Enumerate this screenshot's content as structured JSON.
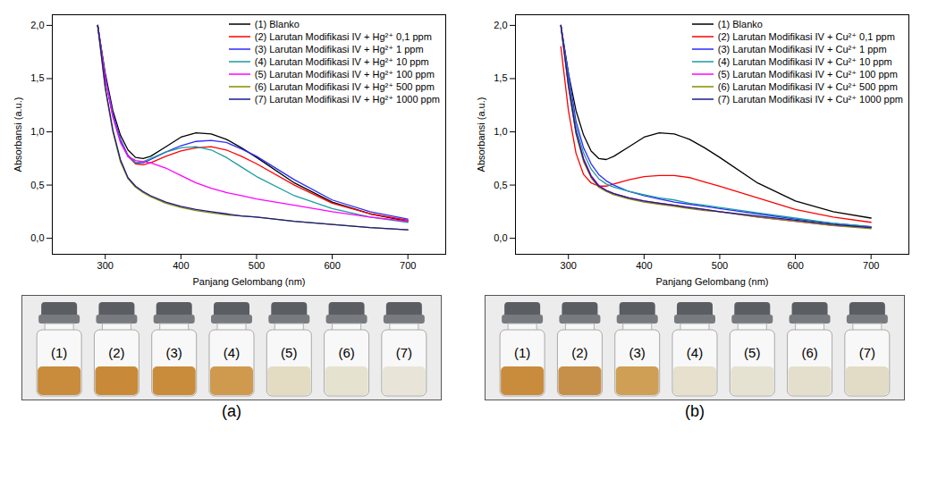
{
  "chart_data": [
    {
      "type": "line",
      "panel_label": "(a)",
      "xlabel": "Panjang Gelombang (nm)",
      "ylabel": "Absorbansi (a.u.)",
      "xlim": [
        230,
        750
      ],
      "ylim": [
        -0.15,
        2.1
      ],
      "xticks": [
        300,
        400,
        500,
        600,
        700
      ],
      "yticks": [
        {
          "value": 0,
          "label": "0,0"
        },
        {
          "value": 0.5,
          "label": "0,5"
        },
        {
          "value": 1,
          "label": "1,0"
        },
        {
          "value": 1.5,
          "label": "1,5"
        },
        {
          "value": 2,
          "label": "2,0"
        }
      ],
      "grid": false,
      "legend": "top-right",
      "x": [
        290,
        300,
        310,
        320,
        330,
        340,
        350,
        360,
        380,
        400,
        420,
        440,
        460,
        480,
        500,
        550,
        600,
        650,
        700
      ],
      "series": [
        {
          "name": "(1) Blanko",
          "color": "#000000",
          "values": [
            2.0,
            1.55,
            1.2,
            0.97,
            0.83,
            0.76,
            0.75,
            0.77,
            0.86,
            0.95,
            0.99,
            0.98,
            0.93,
            0.85,
            0.76,
            0.52,
            0.34,
            0.23,
            0.16
          ]
        },
        {
          "name": "(2) Larutan Modifikasi IV + Hg²⁺ 0,1 ppm",
          "color": "#ff0000",
          "values": [
            2.0,
            1.5,
            1.15,
            0.92,
            0.77,
            0.7,
            0.69,
            0.71,
            0.77,
            0.82,
            0.85,
            0.86,
            0.83,
            0.77,
            0.7,
            0.5,
            0.33,
            0.23,
            0.17
          ]
        },
        {
          "name": "(3) Larutan Modifikasi IV + Hg²⁺ 1 ppm",
          "color": "#2a2aff",
          "values": [
            2.0,
            1.52,
            1.17,
            0.93,
            0.78,
            0.71,
            0.71,
            0.74,
            0.81,
            0.87,
            0.91,
            0.92,
            0.9,
            0.84,
            0.77,
            0.55,
            0.36,
            0.25,
            0.18
          ]
        },
        {
          "name": "(4) Larutan Modifikasi IV + Hg²⁺ 10 ppm",
          "color": "#1a9c9c",
          "values": [
            2.0,
            1.5,
            1.15,
            0.91,
            0.77,
            0.71,
            0.72,
            0.75,
            0.81,
            0.85,
            0.86,
            0.83,
            0.76,
            0.67,
            0.58,
            0.4,
            0.28,
            0.2,
            0.15
          ]
        },
        {
          "name": "(5) Larutan Modifikasi IV + Hg²⁺ 100 ppm",
          "color": "#ff00ff",
          "values": [
            2.0,
            1.5,
            1.14,
            0.9,
            0.77,
            0.73,
            0.72,
            0.71,
            0.66,
            0.59,
            0.52,
            0.47,
            0.43,
            0.4,
            0.37,
            0.31,
            0.25,
            0.2,
            0.16
          ]
        },
        {
          "name": "(6) Larutan Modifikasi IV + Hg²⁺ 500 ppm",
          "color": "#8a8a00",
          "values": [
            2.0,
            1.4,
            1.0,
            0.72,
            0.56,
            0.48,
            0.43,
            0.39,
            0.33,
            0.29,
            0.26,
            0.24,
            0.22,
            0.21,
            0.2,
            0.16,
            0.13,
            0.1,
            0.08
          ]
        },
        {
          "name": "(7) Larutan Modifikasi IV + Hg²⁺ 1000 ppm",
          "color": "#1a1a8c",
          "values": [
            2.0,
            1.42,
            1.02,
            0.74,
            0.57,
            0.49,
            0.44,
            0.4,
            0.34,
            0.3,
            0.27,
            0.25,
            0.23,
            0.21,
            0.2,
            0.16,
            0.13,
            0.1,
            0.08
          ]
        }
      ],
      "vials": [
        {
          "label": "(1)",
          "color": "#c98b3c"
        },
        {
          "label": "(2)",
          "color": "#c88a38"
        },
        {
          "label": "(3)",
          "color": "#c98c3a"
        },
        {
          "label": "(4)",
          "color": "#cf9a4e"
        },
        {
          "label": "(5)",
          "color": "#e3dcc2"
        },
        {
          "label": "(6)",
          "color": "#e6e2d0"
        },
        {
          "label": "(7)",
          "color": "#e8e5d8"
        }
      ]
    },
    {
      "type": "line",
      "panel_label": "(b)",
      "xlabel": "Panjang Gelombang (nm)",
      "ylabel": "Absorbansi (a.u.)",
      "xlim": [
        230,
        750
      ],
      "ylim": [
        -0.15,
        2.1
      ],
      "xticks": [
        300,
        400,
        500,
        600,
        700
      ],
      "yticks": [
        {
          "value": 0,
          "label": "0,0"
        },
        {
          "value": 0.5,
          "label": "0,5"
        },
        {
          "value": 1,
          "label": "1,0"
        },
        {
          "value": 1.5,
          "label": "1,5"
        },
        {
          "value": 2,
          "label": "2,0"
        }
      ],
      "grid": false,
      "legend": "top-right",
      "x": [
        290,
        300,
        310,
        320,
        330,
        340,
        350,
        360,
        380,
        400,
        420,
        440,
        460,
        480,
        500,
        550,
        600,
        650,
        700
      ],
      "series": [
        {
          "name": "(1) Blanko",
          "color": "#000000",
          "values": [
            2.0,
            1.55,
            1.2,
            0.97,
            0.82,
            0.75,
            0.74,
            0.77,
            0.86,
            0.95,
            0.99,
            0.98,
            0.93,
            0.85,
            0.76,
            0.52,
            0.35,
            0.25,
            0.19
          ]
        },
        {
          "name": "(2) Larutan Modifikasi IV + Cu²⁺ 0,1 ppm",
          "color": "#ff0000",
          "values": [
            1.8,
            1.2,
            0.8,
            0.6,
            0.52,
            0.49,
            0.49,
            0.51,
            0.55,
            0.58,
            0.59,
            0.59,
            0.57,
            0.53,
            0.49,
            0.38,
            0.27,
            0.2,
            0.15
          ]
        },
        {
          "name": "(3) Larutan Modifikasi IV + Cu²⁺ 1 ppm",
          "color": "#2a2aff",
          "values": [
            2.0,
            1.55,
            1.1,
            0.85,
            0.7,
            0.6,
            0.54,
            0.5,
            0.44,
            0.4,
            0.37,
            0.34,
            0.32,
            0.3,
            0.28,
            0.23,
            0.18,
            0.14,
            0.11
          ]
        },
        {
          "name": "(4) Larutan Modifikasi IV + Cu²⁺ 10 ppm",
          "color": "#1a9c9c",
          "values": [
            2.0,
            1.5,
            1.05,
            0.8,
            0.65,
            0.56,
            0.51,
            0.48,
            0.44,
            0.41,
            0.38,
            0.36,
            0.33,
            0.31,
            0.29,
            0.24,
            0.19,
            0.14,
            0.11
          ]
        },
        {
          "name": "(5) Larutan Modifikasi IV + Cu²⁺ 100 ppm",
          "color": "#ff00ff",
          "values": [
            2.0,
            1.45,
            1.0,
            0.75,
            0.59,
            0.5,
            0.45,
            0.42,
            0.38,
            0.35,
            0.33,
            0.31,
            0.29,
            0.27,
            0.25,
            0.2,
            0.16,
            0.12,
            0.1
          ]
        },
        {
          "name": "(6) Larutan Modifikasi IV + Cu²⁺ 500 ppm",
          "color": "#8a8a00",
          "values": [
            2.0,
            1.42,
            0.98,
            0.72,
            0.57,
            0.48,
            0.44,
            0.41,
            0.37,
            0.34,
            0.32,
            0.3,
            0.28,
            0.26,
            0.25,
            0.2,
            0.16,
            0.12,
            0.09
          ]
        },
        {
          "name": "(7) Larutan Modifikasi IV + Cu²⁺ 1000 ppm",
          "color": "#1a1a8c",
          "values": [
            2.0,
            1.44,
            1.0,
            0.74,
            0.58,
            0.49,
            0.45,
            0.42,
            0.38,
            0.35,
            0.33,
            0.31,
            0.29,
            0.27,
            0.25,
            0.21,
            0.17,
            0.13,
            0.1
          ]
        }
      ],
      "vials": [
        {
          "label": "(1)",
          "color": "#c98b3c"
        },
        {
          "label": "(2)",
          "color": "#c68f4a"
        },
        {
          "label": "(3)",
          "color": "#cf9f55"
        },
        {
          "label": "(4)",
          "color": "#e6e0cc"
        },
        {
          "label": "(5)",
          "color": "#e6e2d2"
        },
        {
          "label": "(6)",
          "color": "#e4dfcc"
        },
        {
          "label": "(7)",
          "color": "#e2dcc6"
        }
      ]
    }
  ]
}
